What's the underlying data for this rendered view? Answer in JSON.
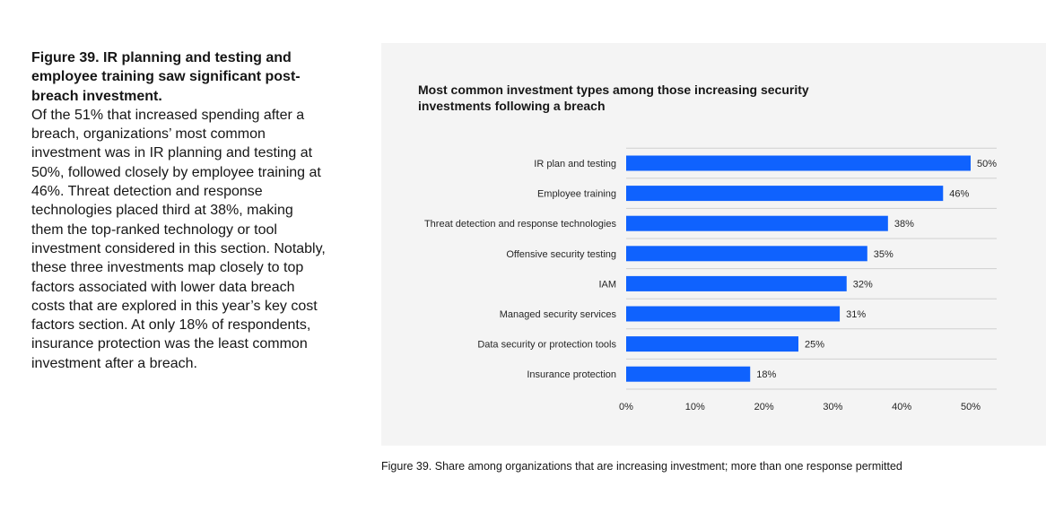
{
  "figure": {
    "title": "Figure 39. IR planning and testing and employee training saw significant post-breach investment.",
    "body": "Of the 51% that increased spending after a breach, organizations’ most common investment was in IR planning and testing at 50%, followed closely by employee training at 46%. Threat detection and response technologies placed third at 38%, making them the top-ranked technology or tool investment considered in this section. Notably, these three investments map closely to top factors associated with lower data breach costs that are explored in this year’s key cost factors section. At only 18% of respondents, insurance protection was the least common investment after a breach.",
    "caption": "Figure 39. Share among organizations that are increasing investment; more than one response permitted"
  },
  "chart_data": {
    "type": "bar",
    "orientation": "horizontal",
    "title": "Most common investment types among those increasing security investments following a breach",
    "categories": [
      "IR plan and testing",
      "Employee training",
      "Threat detection and response technologies",
      "Offensive security testing",
      "IAM",
      "Managed security services",
      "Data security or protection tools",
      "Insurance protection"
    ],
    "values": [
      50,
      46,
      38,
      35,
      32,
      31,
      25,
      18
    ],
    "value_labels": [
      "50%",
      "46%",
      "38%",
      "35%",
      "32%",
      "31%",
      "25%",
      "18%"
    ],
    "xlim": [
      0,
      50
    ],
    "x_ticks": [
      0,
      10,
      20,
      30,
      40,
      50
    ],
    "x_tick_labels": [
      "0%",
      "10%",
      "20%",
      "30%",
      "40%",
      "50%"
    ],
    "bar_color": "#0f62fe",
    "grid": true
  }
}
